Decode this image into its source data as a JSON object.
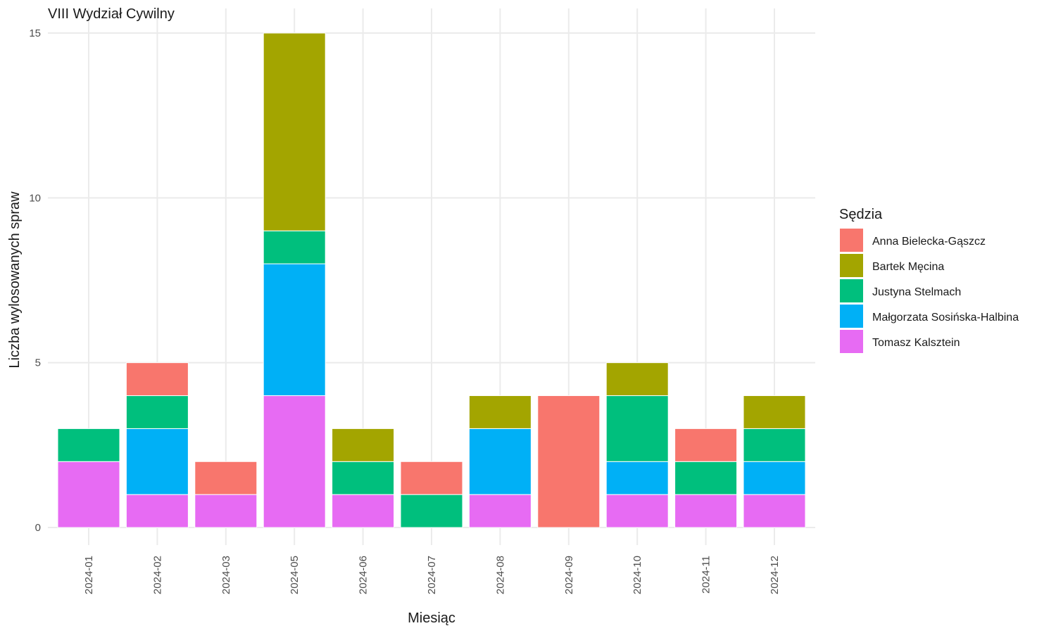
{
  "chart_data": {
    "type": "bar",
    "stacked": true,
    "title": "VIII Wydział Cywilny",
    "xlabel": "Miesiąc",
    "ylabel": "Liczba wylosowanych spraw",
    "ylim": [
      0,
      15
    ],
    "yticks": [
      "0",
      "5",
      "10",
      "15"
    ],
    "grid": true,
    "legend_position": "right",
    "legend_title": "Sędzia",
    "categories": [
      "2024-01",
      "2024-02",
      "2024-03",
      "2024-05",
      "2024-06",
      "2024-07",
      "2024-08",
      "2024-09",
      "2024-10",
      "2024-11",
      "2024-12"
    ],
    "series": [
      {
        "name": "Tomasz Kalsztein",
        "color": "#E76BF3",
        "values": [
          2,
          1,
          1,
          4,
          1,
          0,
          1,
          0,
          1,
          1,
          1
        ]
      },
      {
        "name": "Małgorzata Sosińska-Halbina",
        "color": "#00B0F6",
        "values": [
          0,
          2,
          0,
          4,
          0,
          0,
          2,
          0,
          1,
          0,
          1
        ]
      },
      {
        "name": "Justyna Stelmach",
        "color": "#00BF7D",
        "values": [
          1,
          1,
          0,
          1,
          1,
          1,
          0,
          0,
          2,
          1,
          1
        ]
      },
      {
        "name": "Bartek Męcina",
        "color": "#A3A500",
        "values": [
          0,
          0,
          0,
          6,
          1,
          0,
          1,
          0,
          1,
          0,
          1
        ]
      },
      {
        "name": "Anna Bielecka-Gąszcz",
        "color": "#F8766D",
        "values": [
          0,
          1,
          1,
          0,
          0,
          1,
          0,
          4,
          0,
          1,
          0
        ]
      }
    ],
    "legend_order": [
      "Anna Bielecka-Gąszcz",
      "Bartek Męcina",
      "Justyna Stelmach",
      "Małgorzata Sosińska-Halbina",
      "Tomasz Kalsztein"
    ]
  }
}
